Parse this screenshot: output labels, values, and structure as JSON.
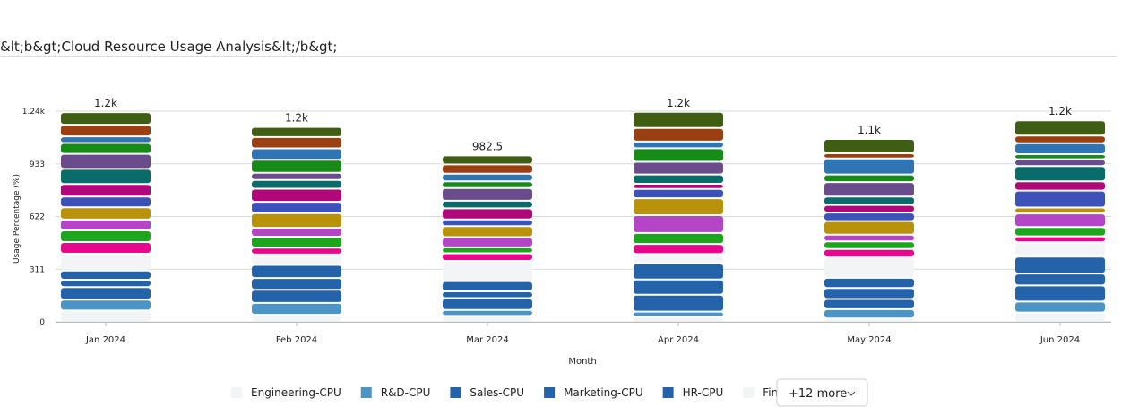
{
  "chart_data": {
    "type": "stacked_bar",
    "title": "&lt;b&gt;Cloud Resource Usage Analysis&lt;/b&gt;",
    "x_label": "Month",
    "y_label": "Usage Percentage (%)",
    "categories": [
      "Jan 2024",
      "Feb 2024",
      "Mar 2024",
      "Apr 2024",
      "May 2024",
      "Jun 2024"
    ],
    "total_labels": [
      "1.2k",
      "1.2k",
      "982.5",
      "1.2k",
      "1.1k",
      "1.2k"
    ],
    "ylim": [
      0,
      1244
    ],
    "yticks": [
      0,
      311,
      622,
      933,
      {
        "value": 1244,
        "label": "1.24k"
      }
    ],
    "grid": true,
    "legend_more": "+12 more",
    "series": [
      {
        "name": "Engineering-CPU",
        "color": "#f3f4f5",
        "values": [
          67,
          42,
          35,
          30,
          20,
          55
        ]
      },
      {
        "name": "R&D-CPU",
        "color": "#4a94c6",
        "values": [
          64,
          70,
          35,
          30,
          55,
          65
        ]
      },
      {
        "name": "Sales-CPU",
        "color": "#2463aa",
        "values": [
          74,
          77,
          70,
          100,
          60,
          95
        ]
      },
      {
        "name": "Marketing-CPU",
        "color": "#2463aa",
        "values": [
          44,
          70,
          40,
          90,
          65,
          70
        ]
      },
      {
        "name": "HR-CPU",
        "color": "#2463aa",
        "values": [
          54,
          77,
          60,
          95,
          60,
          100
        ]
      },
      {
        "name": "Finance-CPU",
        "color": "#f3f4f5",
        "values": [
          99,
          62,
          120,
          55,
          120,
          85
        ]
      },
      {
        "color": "#e8078c",
        "values": [
          69,
          40,
          45,
          60,
          50,
          35
        ]
      },
      {
        "color": "#1ea51e",
        "values": [
          69,
          65,
          35,
          65,
          45,
          55
        ]
      },
      {
        "color": "#b445c6",
        "values": [
          64,
          52,
          60,
          105,
          40,
          80
        ]
      },
      {
        "color": "#b8920a",
        "values": [
          72,
          87,
          65,
          100,
          80,
          35
        ]
      },
      {
        "color": "#3d52b8",
        "values": [
          64,
          67,
          40,
          55,
          50,
          100
        ]
      },
      {
        "color": "#b0087a",
        "values": [
          74,
          77,
          65,
          30,
          45,
          55
        ]
      },
      {
        "color": "#0a6b6b",
        "values": [
          89,
          52,
          45,
          55,
          50,
          90
        ]
      },
      {
        "color": "#6a4c8c",
        "values": [
          89,
          42,
          75,
          75,
          85,
          40
        ]
      },
      {
        "color": "#178a17",
        "values": [
          64,
          77,
          40,
          80,
          45,
          30
        ]
      },
      {
        "color": "#2f74b3",
        "values": [
          39,
          67,
          45,
          40,
          95,
          65
        ]
      },
      {
        "color": "#9a3f12",
        "values": [
          69,
          67,
          55,
          80,
          30,
          45
        ]
      },
      {
        "color": "#3f5e14",
        "values": [
          74,
          60,
          52.5,
          95,
          85,
          90
        ]
      }
    ]
  }
}
